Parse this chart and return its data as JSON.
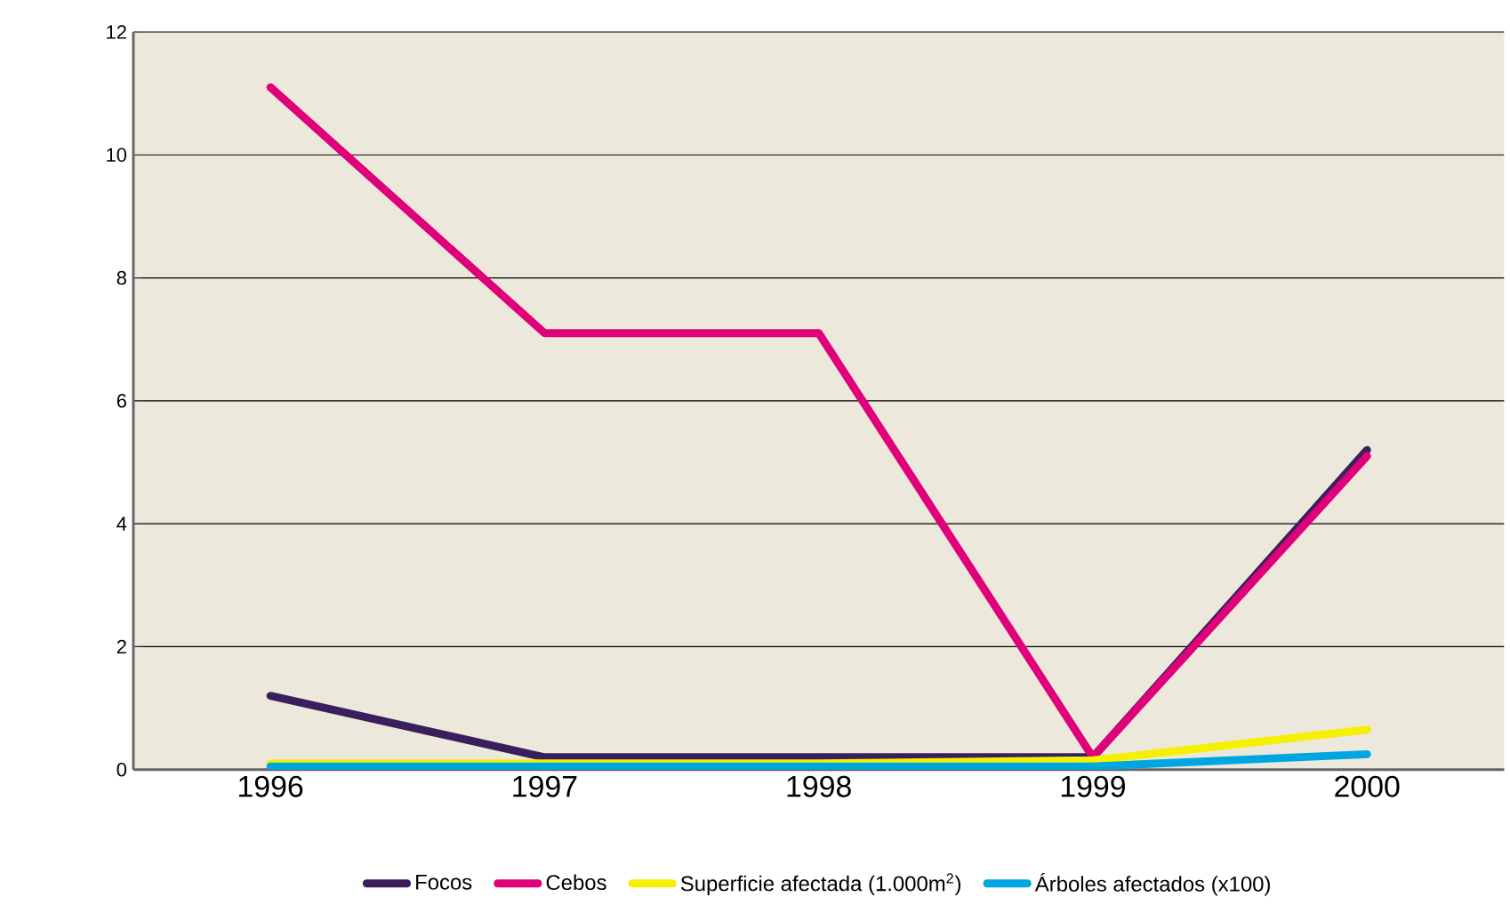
{
  "chart_data": {
    "type": "line",
    "categories": [
      "1996",
      "1997",
      "1998",
      "1999",
      "2000"
    ],
    "series": [
      {
        "name": "Focos",
        "color": "#3b1f5c",
        "values": [
          1.2,
          0.2,
          0.2,
          0.2,
          5.2
        ]
      },
      {
        "name": "Cebos",
        "color": "#e0007a",
        "values": [
          11.1,
          7.1,
          7.1,
          0.2,
          5.1
        ]
      },
      {
        "name": "Superficie afectada (1.000m$^{2}$)",
        "color": "#f5f000",
        "values": [
          0.1,
          0.1,
          0.1,
          0.15,
          0.65
        ]
      },
      {
        "name": "Árboles afectados (x100)",
        "color": "#00a6e0",
        "values": [
          0.05,
          0.05,
          0.05,
          0.05,
          0.25
        ]
      }
    ],
    "ylim": [
      0,
      12
    ],
    "yticks": [
      0,
      2,
      4,
      6,
      8,
      10,
      12
    ],
    "grid": "y",
    "legend": "bottom",
    "marker": "none",
    "line_style": "solid"
  }
}
